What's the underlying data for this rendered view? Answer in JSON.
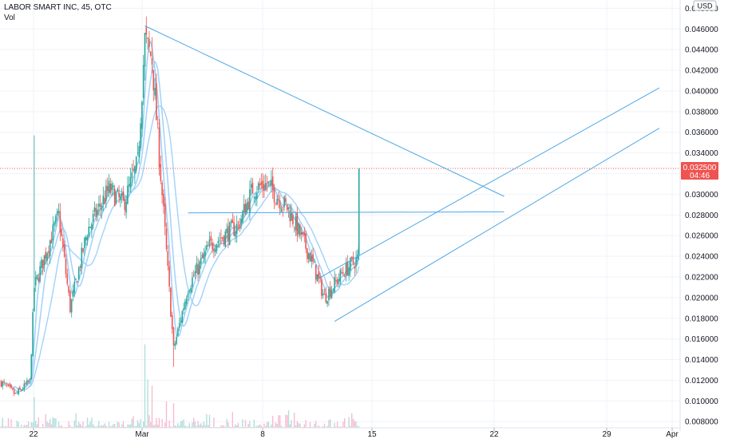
{
  "legend": {
    "title": "LABOR SMART INC, 45, OTC",
    "volume_label": "Vol"
  },
  "currency": "USD",
  "last_price": {
    "value": "0.032500",
    "countdown": "04:46",
    "color": "#ef5350"
  },
  "colors": {
    "up": "#26a69a",
    "down": "#ef5350",
    "vol_up": "#b2dfdb",
    "vol_down": "#f8bbd0",
    "trend": "#4ea7e6",
    "ma": "#90caf9",
    "grid": "#f0f3fa"
  },
  "chart_data": {
    "type": "candlestick",
    "x_tick_labels": [
      "22",
      "Mar",
      "8",
      "15",
      "22",
      "29",
      "Apr"
    ],
    "y_tick_labels": [
      "0.048000",
      "0.046000",
      "0.044000",
      "0.042000",
      "0.040000",
      "0.038000",
      "0.036000",
      "0.034000",
      "0.032000",
      "0.030000",
      "0.028000",
      "0.026000",
      "0.024000",
      "0.022000",
      "0.020000",
      "0.018000",
      "0.016000",
      "0.014000",
      "0.012000",
      "0.010000",
      "0.008000"
    ],
    "ylim": [
      0.0074,
      0.0488
    ],
    "last_value": 0.0325,
    "bars": 250,
    "path": [
      [
        0,
        0.0118
      ],
      [
        10,
        0.0106
      ],
      [
        20,
        0.0119
      ],
      [
        23,
        0.021
      ],
      [
        40,
        0.028
      ],
      [
        48,
        0.019
      ],
      [
        60,
        0.0265
      ],
      [
        75,
        0.0305
      ],
      [
        85,
        0.029
      ],
      [
        95,
        0.033
      ],
      [
        100,
        0.045
      ],
      [
        105,
        0.043
      ],
      [
        112,
        0.03
      ],
      [
        120,
        0.015
      ],
      [
        130,
        0.021
      ],
      [
        145,
        0.025
      ],
      [
        165,
        0.027
      ],
      [
        175,
        0.0305
      ],
      [
        185,
        0.031
      ],
      [
        200,
        0.0285
      ],
      [
        215,
        0.024
      ],
      [
        225,
        0.02
      ],
      [
        238,
        0.0225
      ],
      [
        250,
        0.024
      ],
      [
        265,
        0.0215
      ],
      [
        285,
        0.0245
      ],
      [
        300,
        0.0275
      ],
      [
        318,
        0.027
      ],
      [
        335,
        0.0255
      ],
      [
        350,
        0.0285
      ],
      [
        362,
        0.028
      ],
      [
        370,
        0.034
      ],
      [
        375,
        0.0318
      ],
      [
        379,
        0.0325
      ]
    ],
    "volume_spikes": [
      [
        23,
        0.35
      ],
      [
        100,
        0.95
      ],
      [
        102,
        0.55
      ],
      [
        105,
        0.48
      ],
      [
        115,
        0.3
      ],
      [
        120,
        0.28
      ],
      [
        200,
        0.2
      ],
      [
        260,
        0.22
      ]
    ],
    "trendlines": [
      {
        "from": [
          100,
          0.0463
        ],
        "to": [
          350,
          0.0298
        ]
      },
      {
        "from": [
          220,
          0.0218
        ],
        "to": [
          458,
          0.0403
        ]
      },
      {
        "from": [
          232,
          0.0177
        ],
        "to": [
          458,
          0.0364
        ]
      },
      {
        "from": [
          130,
          0.0282
        ],
        "to": [
          350,
          0.0283
        ]
      }
    ],
    "moving_averages": [
      {
        "period": 5,
        "stroke": 1.6
      },
      {
        "period": 10,
        "stroke": 1.5
      },
      {
        "period": 20,
        "stroke": 1.4
      }
    ]
  }
}
